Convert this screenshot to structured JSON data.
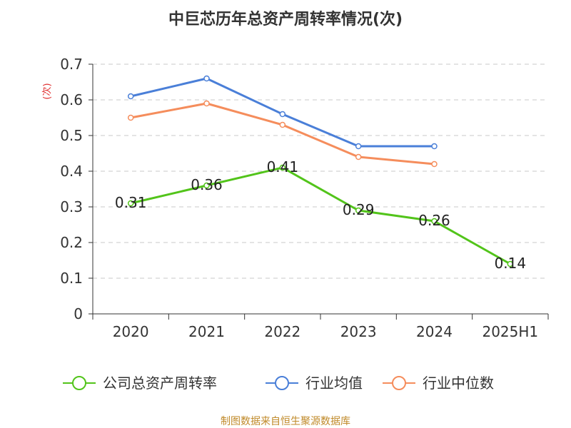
{
  "colors": {
    "company": "#52c41a",
    "industry_avg": "#4a7fd8",
    "industry_median": "#f58d5c"
  },
  "source": "制图数据来自恒生聚源数据库",
  "chart_data": {
    "type": "line",
    "title": "中巨芯历年总资产周转率情况(次)",
    "ylabel": "(次)",
    "xlabel": "",
    "categories": [
      "2020",
      "2021",
      "2022",
      "2023",
      "2024",
      "2025H1"
    ],
    "ylim": [
      0,
      0.7
    ],
    "yticks": [
      "0",
      "0.1",
      "0.2",
      "0.3",
      "0.4",
      "0.5",
      "0.6",
      "0.7"
    ],
    "grid": true,
    "legend_position": "bottom",
    "series": [
      {
        "name": "公司总资产周转率",
        "color_key": "company",
        "values": [
          0.31,
          0.36,
          0.41,
          0.29,
          0.26,
          0.14
        ],
        "labels": [
          "0.31",
          "0.36",
          "0.41",
          "0.29",
          "0.26",
          "0.14"
        ]
      },
      {
        "name": "行业均值",
        "color_key": "industry_avg",
        "values": [
          0.61,
          0.66,
          0.56,
          0.47,
          0.47,
          null
        ]
      },
      {
        "name": "行业中位数",
        "color_key": "industry_median",
        "values": [
          0.55,
          0.59,
          0.53,
          0.44,
          0.42,
          null
        ]
      }
    ]
  }
}
